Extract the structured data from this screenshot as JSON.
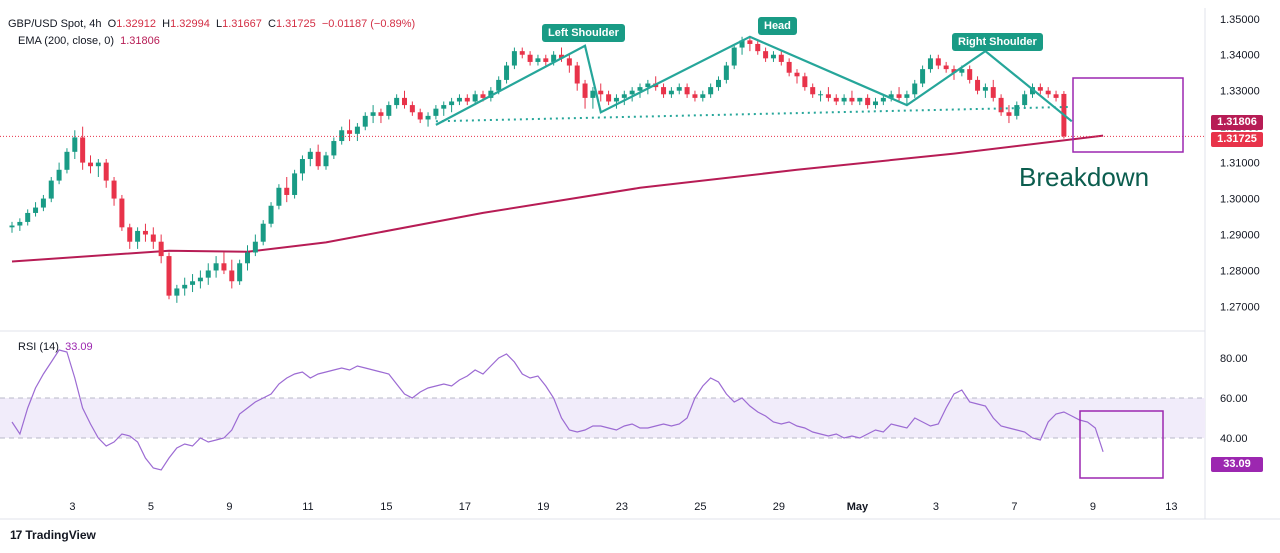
{
  "header": {
    "symbol": "GBP/USD Spot, 4h",
    "o_label": "O",
    "o_val": "1.32912",
    "h_label": "H",
    "h_val": "1.32994",
    "l_label": "L",
    "l_val": "1.31667",
    "c_label": "C",
    "c_val": "1.31725",
    "change": "−0.01187 (−0.89%)",
    "ema_label": "EMA (200, close, 0)",
    "ema_val": "1.31806"
  },
  "rsi_header": {
    "label": "RSI (14)",
    "value": "33.09"
  },
  "price_boxes": {
    "ema": "1.31806",
    "close": "1.31725",
    "rsi": "33.09"
  },
  "annotations": {
    "left_shoulder": "Left Shoulder",
    "head": "Head",
    "right_shoulder": "Right Shoulder",
    "breakdown": "Breakdown"
  },
  "branding": {
    "logo": "TradingView"
  },
  "colors": {
    "up": "#199b85",
    "down": "#e8334a",
    "ema": "#b71c55",
    "rsi": "#9c6bd3",
    "pattern": "#26a69a",
    "box": "#9c27b0"
  },
  "chart_data": [
    {
      "type": "candlestick",
      "title": "GBP/USD Spot, 4h",
      "y_ticks": [
        "1.35000",
        "1.34000",
        "1.33000",
        "1.32000",
        "1.31000",
        "1.30000",
        "1.29000",
        "1.28000",
        "1.27000"
      ],
      "ylim": [
        1.264,
        1.353
      ],
      "x_ticks": [
        "3",
        "5",
        "9",
        "11",
        "15",
        "17",
        "19",
        "23",
        "25",
        "29",
        "May",
        "3",
        "7",
        "9",
        "13"
      ],
      "x_tick_index": [
        4,
        14,
        24,
        34,
        44,
        54,
        64,
        74,
        84,
        94,
        104,
        114,
        124,
        134,
        144
      ],
      "candles": [
        [
          1.292,
          1.2935,
          1.2905,
          1.2925
        ],
        [
          1.2925,
          1.2945,
          1.291,
          1.2935
        ],
        [
          1.2935,
          1.297,
          1.2925,
          1.296
        ],
        [
          1.296,
          1.299,
          1.295,
          1.2975
        ],
        [
          1.2975,
          1.301,
          1.2965,
          1.3
        ],
        [
          1.3,
          1.306,
          1.299,
          1.305
        ],
        [
          1.305,
          1.31,
          1.304,
          1.308
        ],
        [
          1.308,
          1.314,
          1.307,
          1.313
        ],
        [
          1.313,
          1.319,
          1.311,
          1.317
        ],
        [
          1.317,
          1.32,
          1.308,
          1.31
        ],
        [
          1.31,
          1.312,
          1.307,
          1.309
        ],
        [
          1.309,
          1.311,
          1.306,
          1.31
        ],
        [
          1.31,
          1.311,
          1.303,
          1.305
        ],
        [
          1.305,
          1.306,
          1.298,
          1.3
        ],
        [
          1.3,
          1.301,
          1.291,
          1.292
        ],
        [
          1.292,
          1.293,
          1.286,
          1.288
        ],
        [
          1.288,
          1.292,
          1.286,
          1.291
        ],
        [
          1.291,
          1.293,
          1.288,
          1.29
        ],
        [
          1.29,
          1.292,
          1.286,
          1.288
        ],
        [
          1.288,
          1.29,
          1.282,
          1.284
        ],
        [
          1.284,
          1.285,
          1.272,
          1.273
        ],
        [
          1.273,
          1.276,
          1.271,
          1.275
        ],
        [
          1.275,
          1.278,
          1.273,
          1.276
        ],
        [
          1.276,
          1.279,
          1.274,
          1.277
        ],
        [
          1.277,
          1.28,
          1.275,
          1.278
        ],
        [
          1.278,
          1.282,
          1.276,
          1.28
        ],
        [
          1.28,
          1.284,
          1.278,
          1.282
        ],
        [
          1.282,
          1.285,
          1.279,
          1.28
        ],
        [
          1.28,
          1.283,
          1.275,
          1.277
        ],
        [
          1.277,
          1.283,
          1.276,
          1.282
        ],
        [
          1.282,
          1.287,
          1.28,
          1.285
        ],
        [
          1.285,
          1.29,
          1.284,
          1.288
        ],
        [
          1.288,
          1.294,
          1.287,
          1.293
        ],
        [
          1.293,
          1.299,
          1.292,
          1.298
        ],
        [
          1.298,
          1.304,
          1.297,
          1.303
        ],
        [
          1.303,
          1.306,
          1.299,
          1.301
        ],
        [
          1.301,
          1.308,
          1.3,
          1.307
        ],
        [
          1.307,
          1.312,
          1.305,
          1.311
        ],
        [
          1.311,
          1.314,
          1.309,
          1.313
        ],
        [
          1.313,
          1.315,
          1.308,
          1.309
        ],
        [
          1.309,
          1.313,
          1.308,
          1.312
        ],
        [
          1.312,
          1.317,
          1.311,
          1.316
        ],
        [
          1.316,
          1.32,
          1.315,
          1.319
        ],
        [
          1.319,
          1.322,
          1.316,
          1.318
        ],
        [
          1.318,
          1.321,
          1.316,
          1.32
        ],
        [
          1.32,
          1.324,
          1.319,
          1.323
        ],
        [
          1.323,
          1.326,
          1.321,
          1.324
        ],
        [
          1.324,
          1.325,
          1.321,
          1.323
        ],
        [
          1.323,
          1.327,
          1.322,
          1.326
        ],
        [
          1.326,
          1.329,
          1.325,
          1.328
        ],
        [
          1.328,
          1.33,
          1.325,
          1.326
        ],
        [
          1.326,
          1.327,
          1.323,
          1.324
        ],
        [
          1.324,
          1.325,
          1.321,
          1.322
        ],
        [
          1.322,
          1.324,
          1.32,
          1.323
        ],
        [
          1.323,
          1.326,
          1.322,
          1.325
        ],
        [
          1.325,
          1.327,
          1.323,
          1.326
        ],
        [
          1.326,
          1.328,
          1.324,
          1.327
        ],
        [
          1.327,
          1.329,
          1.326,
          1.328
        ],
        [
          1.328,
          1.329,
          1.326,
          1.327
        ],
        [
          1.327,
          1.33,
          1.326,
          1.329
        ],
        [
          1.329,
          1.33,
          1.327,
          1.328
        ],
        [
          1.328,
          1.331,
          1.327,
          1.33
        ],
        [
          1.33,
          1.334,
          1.329,
          1.333
        ],
        [
          1.333,
          1.338,
          1.332,
          1.337
        ],
        [
          1.337,
          1.342,
          1.336,
          1.341
        ],
        [
          1.341,
          1.342,
          1.339,
          1.34
        ],
        [
          1.34,
          1.341,
          1.337,
          1.338
        ],
        [
          1.338,
          1.34,
          1.337,
          1.339
        ],
        [
          1.339,
          1.34,
          1.337,
          1.338
        ],
        [
          1.338,
          1.341,
          1.337,
          1.34
        ],
        [
          1.34,
          1.342,
          1.338,
          1.339
        ],
        [
          1.339,
          1.34,
          1.335,
          1.337
        ],
        [
          1.337,
          1.338,
          1.33,
          1.332
        ],
        [
          1.332,
          1.333,
          1.325,
          1.328
        ],
        [
          1.328,
          1.331,
          1.325,
          1.33
        ],
        [
          1.33,
          1.332,
          1.327,
          1.329
        ],
        [
          1.329,
          1.33,
          1.326,
          1.327
        ],
        [
          1.327,
          1.329,
          1.325,
          1.328
        ],
        [
          1.328,
          1.33,
          1.326,
          1.329
        ],
        [
          1.329,
          1.331,
          1.327,
          1.33
        ],
        [
          1.33,
          1.332,
          1.328,
          1.331
        ],
        [
          1.331,
          1.333,
          1.329,
          1.332
        ],
        [
          1.332,
          1.334,
          1.33,
          1.331
        ],
        [
          1.331,
          1.332,
          1.328,
          1.329
        ],
        [
          1.329,
          1.331,
          1.328,
          1.33
        ],
        [
          1.33,
          1.332,
          1.329,
          1.331
        ],
        [
          1.331,
          1.332,
          1.328,
          1.329
        ],
        [
          1.329,
          1.33,
          1.327,
          1.328
        ],
        [
          1.328,
          1.33,
          1.327,
          1.329
        ],
        [
          1.329,
          1.332,
          1.328,
          1.331
        ],
        [
          1.331,
          1.334,
          1.33,
          1.333
        ],
        [
          1.333,
          1.338,
          1.332,
          1.337
        ],
        [
          1.337,
          1.343,
          1.336,
          1.342
        ],
        [
          1.342,
          1.345,
          1.34,
          1.344
        ],
        [
          1.344,
          1.345,
          1.341,
          1.343
        ],
        [
          1.343,
          1.344,
          1.34,
          1.341
        ],
        [
          1.341,
          1.342,
          1.338,
          1.339
        ],
        [
          1.339,
          1.341,
          1.338,
          1.34
        ],
        [
          1.34,
          1.341,
          1.337,
          1.338
        ],
        [
          1.338,
          1.339,
          1.334,
          1.335
        ],
        [
          1.335,
          1.336,
          1.332,
          1.334
        ],
        [
          1.334,
          1.335,
          1.33,
          1.331
        ],
        [
          1.331,
          1.332,
          1.328,
          1.329
        ],
        [
          1.329,
          1.33,
          1.327,
          1.329
        ],
        [
          1.329,
          1.331,
          1.327,
          1.328
        ],
        [
          1.328,
          1.329,
          1.326,
          1.327
        ],
        [
          1.327,
          1.329,
          1.326,
          1.328
        ],
        [
          1.328,
          1.33,
          1.326,
          1.327
        ],
        [
          1.327,
          1.328,
          1.326,
          1.328
        ],
        [
          1.328,
          1.329,
          1.325,
          1.326
        ],
        [
          1.326,
          1.328,
          1.325,
          1.327
        ],
        [
          1.327,
          1.329,
          1.326,
          1.328
        ],
        [
          1.328,
          1.33,
          1.327,
          1.329
        ],
        [
          1.329,
          1.331,
          1.327,
          1.328
        ],
        [
          1.328,
          1.33,
          1.326,
          1.329
        ],
        [
          1.329,
          1.333,
          1.328,
          1.332
        ],
        [
          1.332,
          1.337,
          1.331,
          1.336
        ],
        [
          1.336,
          1.34,
          1.335,
          1.339
        ],
        [
          1.339,
          1.34,
          1.336,
          1.337
        ],
        [
          1.337,
          1.338,
          1.335,
          1.336
        ],
        [
          1.336,
          1.337,
          1.333,
          1.335
        ],
        [
          1.335,
          1.337,
          1.334,
          1.336
        ],
        [
          1.336,
          1.337,
          1.332,
          1.333
        ],
        [
          1.333,
          1.334,
          1.329,
          1.33
        ],
        [
          1.33,
          1.332,
          1.328,
          1.331
        ],
        [
          1.331,
          1.333,
          1.327,
          1.328
        ],
        [
          1.328,
          1.329,
          1.323,
          1.324
        ],
        [
          1.324,
          1.326,
          1.321,
          1.323
        ],
        [
          1.323,
          1.327,
          1.322,
          1.326
        ],
        [
          1.326,
          1.33,
          1.325,
          1.329
        ],
        [
          1.329,
          1.332,
          1.328,
          1.331
        ],
        [
          1.331,
          1.332,
          1.329,
          1.33
        ],
        [
          1.33,
          1.331,
          1.328,
          1.329
        ],
        [
          1.329,
          1.33,
          1.327,
          1.328
        ],
        [
          1.3291,
          1.3299,
          1.3167,
          1.3173
        ]
      ],
      "ema200": [
        [
          0,
          1.2825
        ],
        [
          20,
          1.2855
        ],
        [
          30,
          1.2852
        ],
        [
          40,
          1.2878
        ],
        [
          60,
          1.296
        ],
        [
          80,
          1.303
        ],
        [
          100,
          1.308
        ],
        [
          120,
          1.3125
        ],
        [
          139,
          1.3175
        ]
      ],
      "neckline": [
        [
          54,
          1.3215
        ],
        [
          135,
          1.3255
        ]
      ],
      "pattern_line": [
        [
          54,
          1.3205
        ],
        [
          73,
          1.3425
        ],
        [
          75,
          1.324
        ],
        [
          94,
          1.345
        ],
        [
          114,
          1.326
        ],
        [
          124,
          1.341
        ],
        [
          135,
          1.3215
        ]
      ]
    },
    {
      "type": "line",
      "title": "RSI (14)",
      "y_ticks": [
        "80.00",
        "60.00",
        "40.00"
      ],
      "ylim": [
        15,
        91
      ],
      "band": [
        40,
        60
      ],
      "values": [
        48,
        42,
        55,
        65,
        72,
        78,
        84,
        83,
        70,
        55,
        47,
        40,
        36,
        38,
        42,
        41,
        38,
        30,
        25,
        24,
        30,
        35,
        37,
        36,
        40,
        38,
        39,
        40,
        44,
        52,
        55,
        58,
        60,
        62,
        67,
        70,
        72,
        73,
        70,
        72,
        73,
        74,
        75,
        74,
        76,
        75,
        74,
        73,
        72,
        67,
        62,
        60,
        63,
        65,
        66,
        67,
        66,
        69,
        71,
        74,
        72,
        76,
        80,
        82,
        78,
        72,
        70,
        71,
        66,
        60,
        50,
        44,
        43,
        44,
        46,
        46,
        45,
        44,
        46,
        47,
        45,
        45,
        46,
        47,
        46,
        47,
        50,
        60,
        66,
        70,
        68,
        62,
        58,
        60,
        56,
        53,
        51,
        48,
        47,
        48,
        46,
        45,
        43,
        42,
        41,
        42,
        40,
        41,
        40,
        42,
        44,
        43,
        47,
        46,
        45,
        50,
        48,
        46,
        47,
        55,
        62,
        64,
        58,
        57,
        56,
        50,
        46,
        45,
        44,
        43,
        40,
        39,
        48,
        52,
        53,
        51,
        49,
        48,
        45,
        33.09
      ]
    }
  ]
}
